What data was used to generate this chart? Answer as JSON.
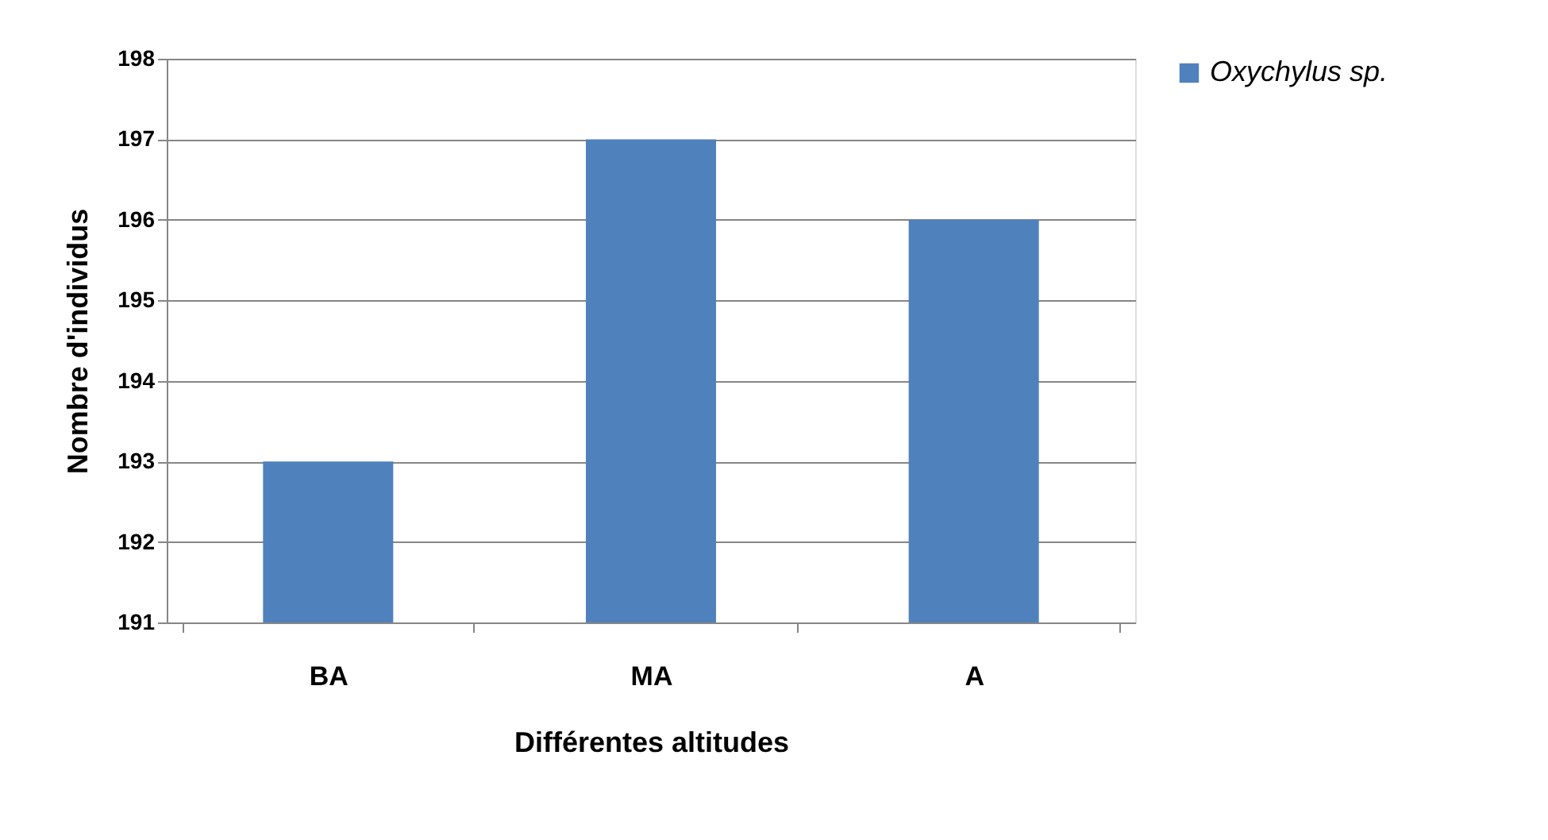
{
  "chart_data": {
    "type": "bar",
    "xlabel": "Différentes altitudes",
    "ylabel": "Nombre d'individus",
    "categories": [
      "BA",
      "MA",
      "A"
    ],
    "series": [
      {
        "name": "Oxychylus sp.",
        "color": "#4f81bd",
        "values": [
          193,
          197,
          196
        ]
      }
    ],
    "ylim": [
      191,
      198
    ],
    "yticks": [
      191,
      192,
      193,
      194,
      195,
      196,
      197,
      198
    ],
    "grid": "y",
    "legend": "right"
  }
}
